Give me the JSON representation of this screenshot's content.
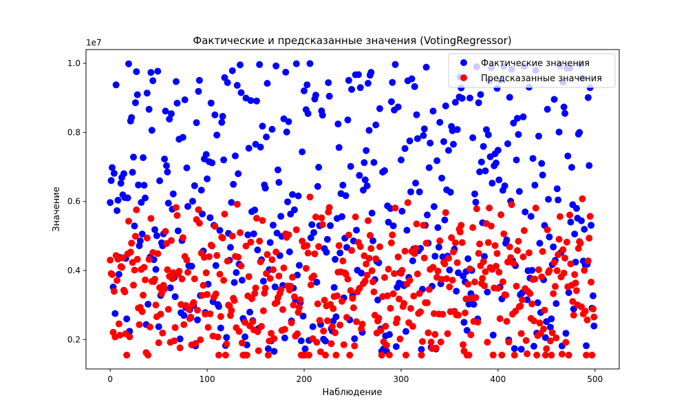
{
  "chart_data": {
    "type": "scatter",
    "title": "Фактические и предсказанные значения (VotingRegressor)",
    "xlabel": "Наблюдение",
    "ylabel": "Значение",
    "y_offset_label": "1e7",
    "xlim": [
      -25,
      525
    ],
    "ylim": [
      1150000,
      10400000
    ],
    "x_ticks": [
      0,
      100,
      200,
      300,
      400,
      500
    ],
    "y_ticks": [
      2000000,
      4000000,
      6000000,
      8000000,
      10000000
    ],
    "y_tick_labels": [
      "0.2",
      "0.4",
      "0.6",
      "0.8",
      "1.0"
    ],
    "grid": false,
    "legend_position": "top-right",
    "series": [
      {
        "name": "Фактические значения",
        "color": "#0000ff",
        "x": [],
        "y": []
      },
      {
        "name": "Предсказанные значения",
        "color": "#ff0000",
        "x": [],
        "y": []
      }
    ],
    "n_points": 500
  }
}
